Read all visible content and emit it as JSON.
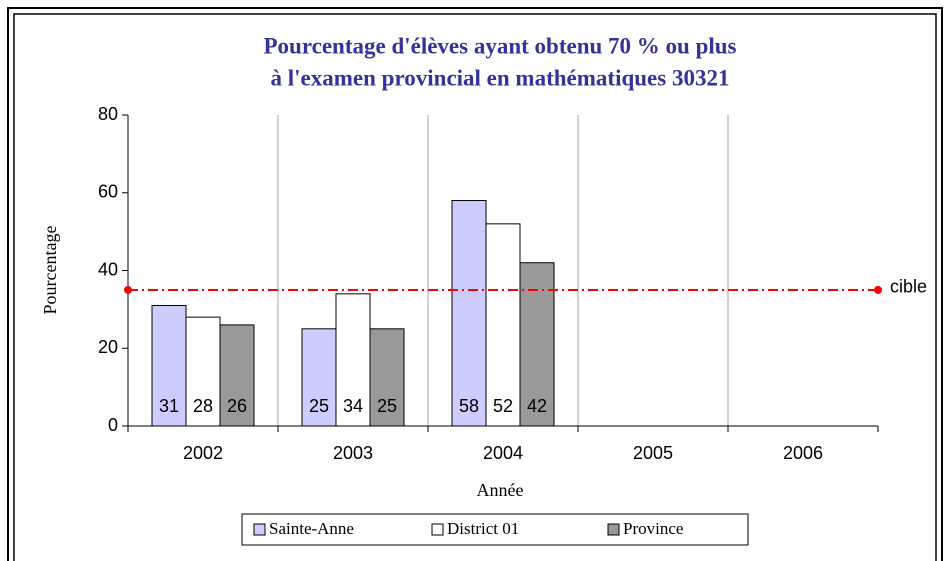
{
  "chart_data": {
    "type": "bar",
    "title": [
      "Pourcentage d'élèves ayant obtenu 70 % ou plus",
      "à l'examen provincial en mathématiques 30321"
    ],
    "xlabel": "Année",
    "ylabel": "Pourcentage",
    "categories": [
      "2002",
      "2003",
      "2004",
      "2005",
      "2006"
    ],
    "series": [
      {
        "name": "Sainte-Anne",
        "color": "#ccccff",
        "values": [
          31,
          25,
          58,
          null,
          null
        ]
      },
      {
        "name": "District 01",
        "color": "#ffffff",
        "values": [
          28,
          34,
          52,
          null,
          null
        ]
      },
      {
        "name": "Province",
        "color": "#999999",
        "values": [
          26,
          25,
          42,
          null,
          null
        ]
      }
    ],
    "ylim": [
      0,
      80
    ],
    "yticks": [
      0,
      20,
      40,
      60,
      80
    ],
    "grid": true,
    "legend": "bottom",
    "target": {
      "label": "cible",
      "value": 35,
      "color": "#ff0000"
    }
  }
}
